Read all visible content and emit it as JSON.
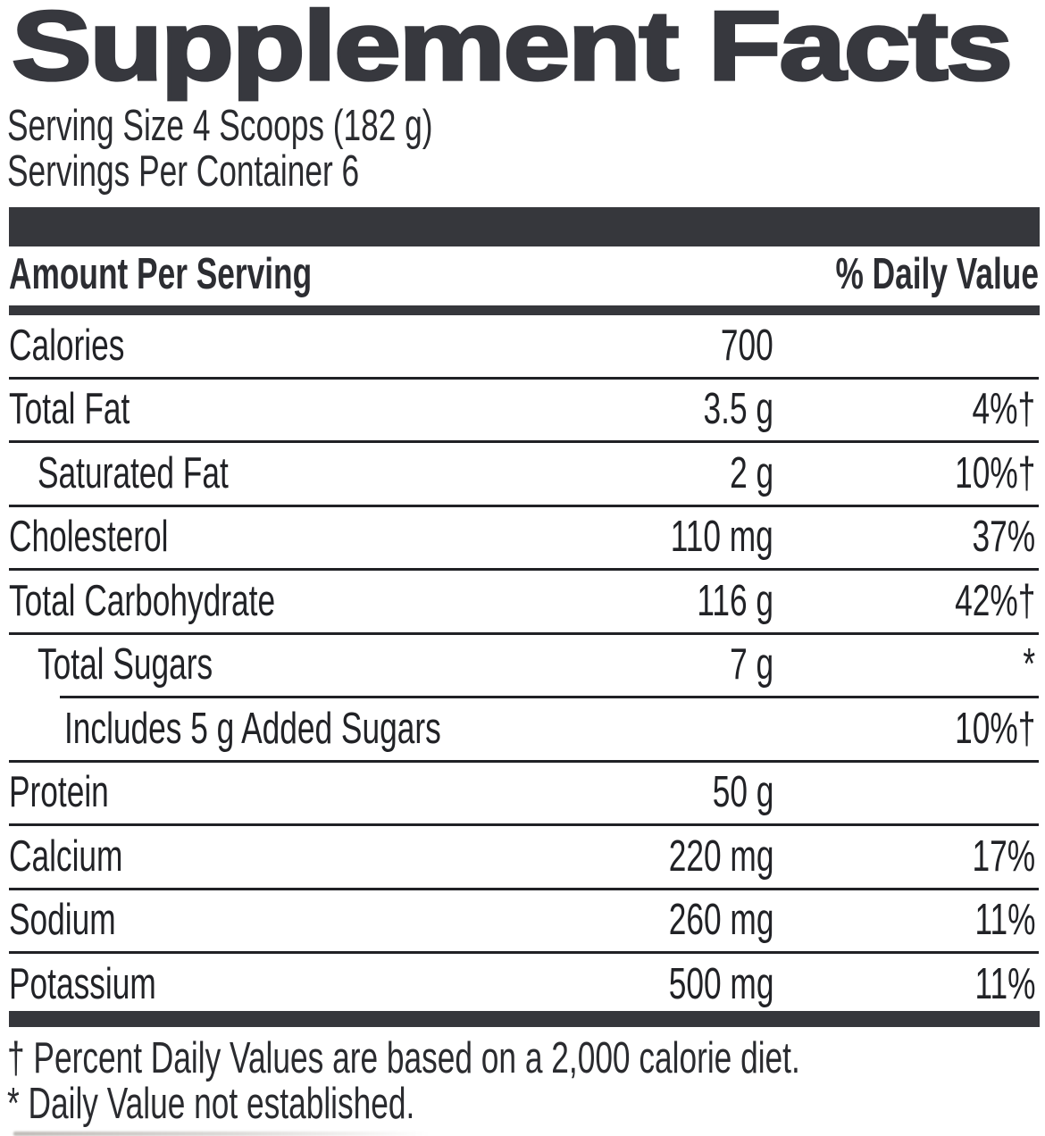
{
  "label": {
    "title": "Supplement Facts",
    "serving_size": "Serving Size 4 Scoops (182 g)",
    "servings_per_container": "Servings Per Container 6",
    "header": {
      "amount_label": "Amount Per Serving",
      "dv_label": "% Daily Value"
    },
    "rows": [
      {
        "name": "Calories",
        "amount": "700",
        "dv": "",
        "indent": 0
      },
      {
        "name": "Total Fat",
        "amount": "3.5 g",
        "dv": "4%†",
        "indent": 0
      },
      {
        "name": "Saturated Fat",
        "amount": "2 g",
        "dv": "10%†",
        "indent": 1
      },
      {
        "name": "Cholesterol",
        "amount": "110 mg",
        "dv": "37%",
        "indent": 0
      },
      {
        "name": "Total Carbohydrate",
        "amount": "116 g",
        "dv": "42%†",
        "indent": 0
      },
      {
        "name": "Total Sugars",
        "amount": "7 g",
        "dv": "*",
        "indent": 1,
        "divider_indented": true
      },
      {
        "name": "Includes 5 g Added Sugars",
        "amount": "",
        "dv": "10%†",
        "indent": 2
      },
      {
        "name": "Protein",
        "amount": "50 g",
        "dv": "",
        "indent": 0
      },
      {
        "name": "Calcium",
        "amount": "220 mg",
        "dv": "17%",
        "indent": 0
      },
      {
        "name": "Sodium",
        "amount": "260 mg",
        "dv": "11%",
        "indent": 0
      },
      {
        "name": "Potassium",
        "amount": "500 mg",
        "dv": "11%",
        "indent": 0,
        "last": true
      }
    ],
    "footnotes": {
      "daily_values": "† Percent Daily Values are based on a 2,000 calorie diet.",
      "not_established": "* Daily Value not established."
    },
    "colors": {
      "ink": "#232428",
      "bar": "#36373c"
    }
  }
}
